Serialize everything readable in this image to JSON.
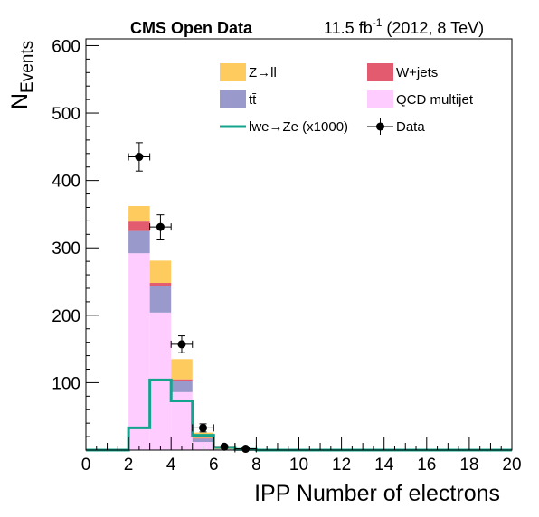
{
  "header": {
    "experiment": "CMS Open Data",
    "lumi_value": "11.5 fb",
    "lumi_exp": "-1",
    "lumi_tail": " (2012, 8 TeV)"
  },
  "chart_data": {
    "type": "bar",
    "stacked": true,
    "xlabel": "IPP Number of electrons",
    "ylabel_main": "N",
    "ylabel_sub": "Events",
    "xlim": [
      0,
      20
    ],
    "ylim": [
      0,
      610
    ],
    "xticks": [
      0,
      2,
      4,
      6,
      8,
      10,
      12,
      14,
      16,
      18,
      20
    ],
    "yticks": [
      100,
      200,
      300,
      400,
      500,
      600
    ],
    "bin_edges": [
      0,
      1,
      2,
      3,
      4,
      5,
      6,
      7,
      8,
      9,
      10,
      11,
      12,
      13,
      14,
      15,
      16,
      17,
      18,
      19,
      20
    ],
    "stack_series": [
      {
        "name": "QCD multijet",
        "color": "#ffccff",
        "values": [
          0,
          0,
          292,
          204,
          86,
          12,
          1,
          0,
          0,
          0,
          0,
          0,
          0,
          0,
          0,
          0,
          0,
          0,
          0,
          0
        ]
      },
      {
        "name": "tt̄",
        "color": "#9999cc",
        "values": [
          0,
          0,
          33,
          40,
          17,
          5,
          0.5,
          0,
          0,
          0,
          0,
          0,
          0,
          0,
          0,
          0,
          0,
          0,
          0,
          0
        ]
      },
      {
        "name": "W+jets",
        "color": "#e35b6f",
        "values": [
          0,
          0,
          14,
          4,
          2,
          1,
          0,
          0,
          0,
          0,
          0,
          0,
          0,
          0,
          0,
          0,
          0,
          0,
          0,
          0
        ]
      },
      {
        "name": "Z→ll",
        "color": "#fecb5e",
        "values": [
          0,
          0,
          23,
          33,
          30,
          8,
          1,
          0,
          0,
          0,
          0,
          0,
          0,
          0,
          0,
          0,
          0,
          0,
          0,
          0
        ]
      }
    ],
    "signal": {
      "name": "lwe→Ze (x1000)",
      "color": "#14a38c",
      "values": [
        0,
        0,
        33,
        104,
        73,
        22,
        4,
        1,
        0,
        0,
        0,
        0,
        0,
        0,
        0,
        0,
        0,
        0,
        0,
        0
      ]
    },
    "data_series": {
      "name": "Data",
      "color": "#000000",
      "x": [
        2.5,
        3.5,
        4.5,
        5.5,
        6.5,
        7.5
      ],
      "y": [
        435,
        331,
        157,
        33,
        5,
        2
      ],
      "yerr": [
        21,
        18,
        12.5,
        6,
        2.2,
        1.4
      ],
      "xerr": 0.5
    },
    "legend": [
      {
        "label": "Z→ll",
        "kind": "box",
        "color": "#fecb5e"
      },
      {
        "label": "W+jets",
        "kind": "box",
        "color": "#e35b6f"
      },
      {
        "label": "tt̄",
        "kind": "box",
        "color": "#9999cc"
      },
      {
        "label": "QCD multijet",
        "kind": "box",
        "color": "#ffccff"
      },
      {
        "label": "lwe→Ze (x1000)",
        "kind": "line",
        "color": "#14a38c"
      },
      {
        "label": "Data",
        "kind": "marker",
        "color": "#000000"
      }
    ]
  }
}
